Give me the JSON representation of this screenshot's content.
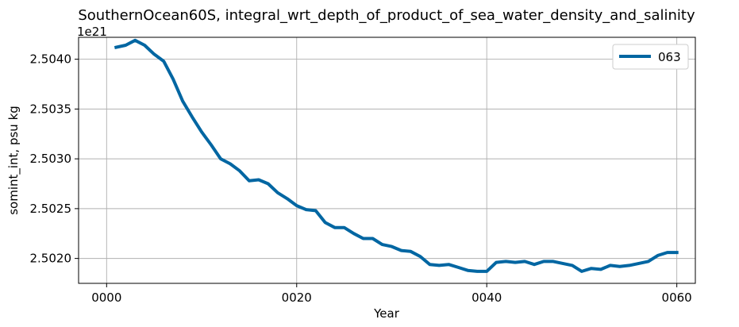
{
  "chart_data": {
    "type": "line",
    "title": "SouthernOcean60S, integral_wrt_depth_of_product_of_sea_water_density_and_salinity",
    "xlabel": "Year",
    "ylabel": "somint_int, psu kg",
    "offset_label": "1e21",
    "y_multiplier": 1e+21,
    "xlim": [
      -2.95,
      61.95
    ],
    "ylim": [
      2.50175,
      2.50422
    ],
    "x_ticks": [
      0,
      20,
      40,
      60
    ],
    "x_tick_labels": [
      "0000",
      "0020",
      "0040",
      "0060"
    ],
    "y_ticks": [
      2.502,
      2.5025,
      2.503,
      2.5035,
      2.504
    ],
    "y_tick_labels": [
      "2.5020",
      "2.5025",
      "2.5030",
      "2.5035",
      "2.5040"
    ],
    "grid": true,
    "legend_position": "top-right",
    "series": [
      {
        "name": "063",
        "color": "#0066a2",
        "x": [
          1,
          2,
          3,
          4,
          5,
          6,
          7,
          8,
          9,
          10,
          11,
          12,
          13,
          14,
          15,
          16,
          17,
          18,
          19,
          20,
          21,
          22,
          23,
          24,
          25,
          26,
          27,
          28,
          29,
          30,
          31,
          32,
          33,
          34,
          35,
          36,
          37,
          38,
          39,
          40,
          41,
          42,
          43,
          44,
          45,
          46,
          47,
          48,
          49,
          50,
          51,
          52,
          53,
          54,
          55,
          56,
          57,
          58,
          59,
          60
        ],
        "y": [
          2.50412,
          2.50414,
          2.50419,
          2.50414,
          2.50405,
          2.50398,
          2.5038,
          2.50358,
          2.50342,
          2.50327,
          2.50314,
          2.503,
          2.50295,
          2.50288,
          2.50278,
          2.50279,
          2.50275,
          2.50266,
          2.5026,
          2.50253,
          2.50249,
          2.50248,
          2.50236,
          2.50231,
          2.50231,
          2.50225,
          2.5022,
          2.5022,
          2.50214,
          2.50212,
          2.50208,
          2.50207,
          2.50202,
          2.50194,
          2.50193,
          2.50194,
          2.50191,
          2.50188,
          2.50187,
          2.50187,
          2.50196,
          2.50197,
          2.50196,
          2.50197,
          2.50194,
          2.50197,
          2.50197,
          2.50195,
          2.50193,
          2.50187,
          2.5019,
          2.50189,
          2.50193,
          2.50192,
          2.50193,
          2.50195,
          2.50197,
          2.50203,
          2.50206,
          2.50206
        ]
      }
    ]
  }
}
